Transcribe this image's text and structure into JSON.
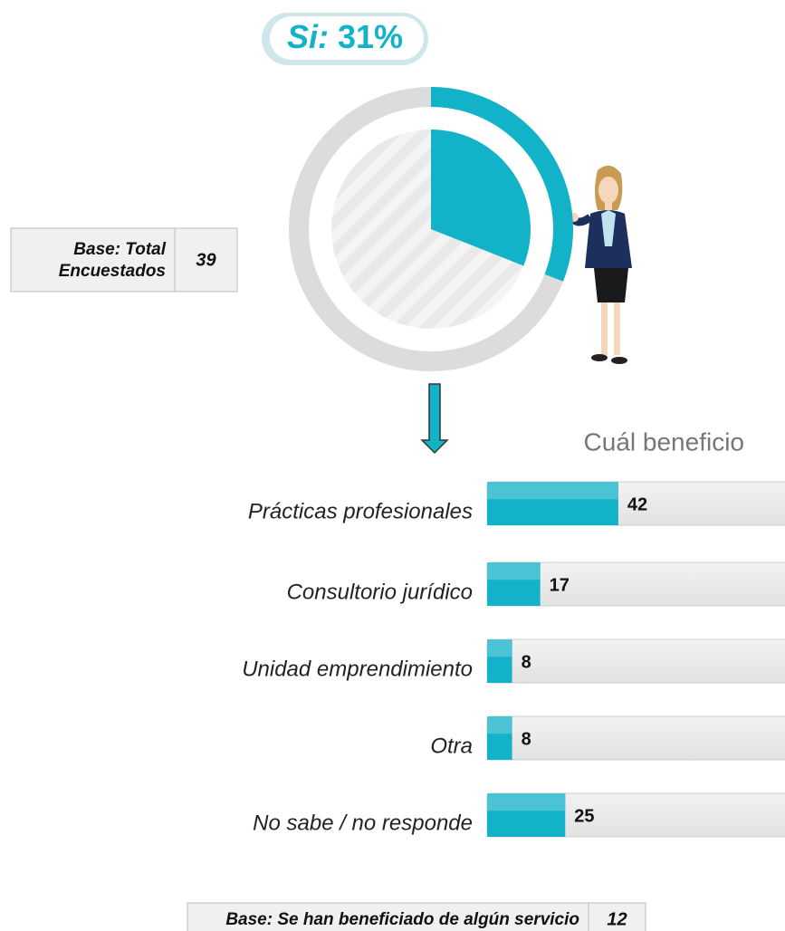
{
  "chart_data": [
    {
      "type": "pie",
      "label": "Si:",
      "values": [
        31
      ],
      "value_labels": [
        "31%"
      ],
      "color": "#12b2c9"
    },
    {
      "type": "bar",
      "title": "Cuál beneficio",
      "categories": [
        "Prácticas profesionales",
        "Consultorio jurídico",
        "Unidad emprendimiento",
        "Otra",
        "No sabe / no responde"
      ],
      "values": [
        42,
        17,
        8,
        8,
        25
      ],
      "color": "#12b2c9",
      "xlim": [
        0,
        100
      ]
    }
  ],
  "bases": [
    {
      "label": "Base: Total Encuestados",
      "value": "39"
    },
    {
      "label": "Base: Se han beneficiado de algún servicio",
      "value": "12"
    }
  ]
}
